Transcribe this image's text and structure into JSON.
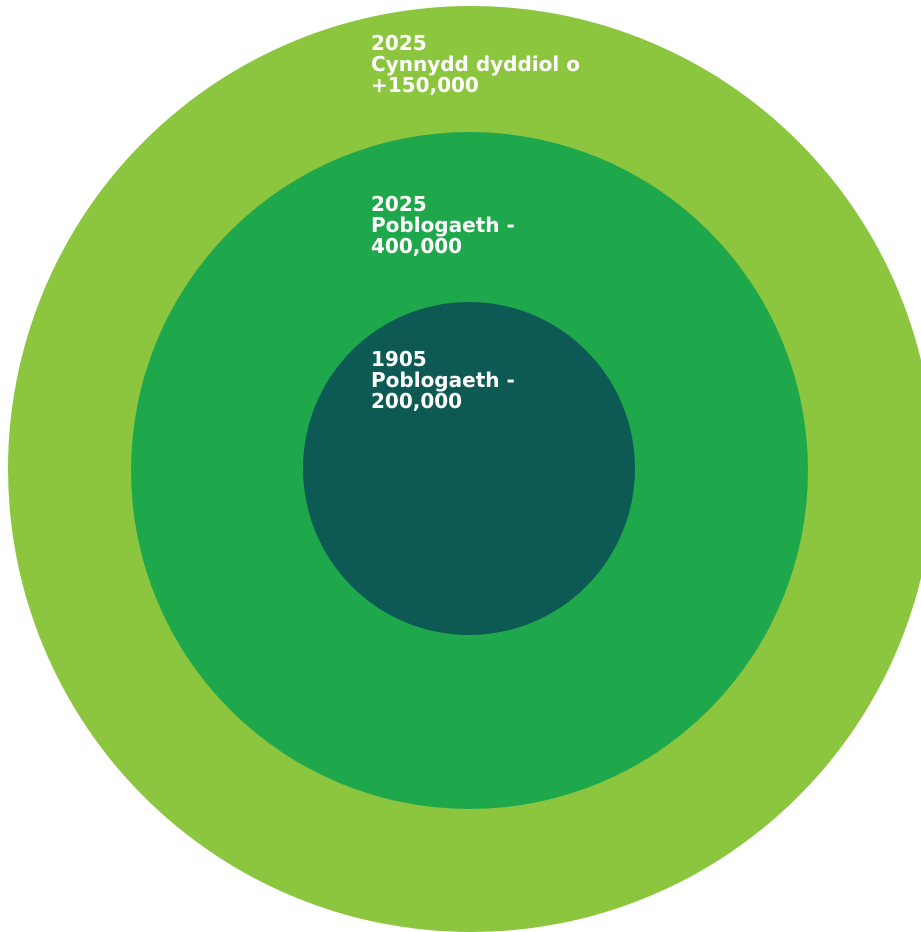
{
  "colors": {
    "outer_ring": "#8cc63f",
    "middle_ring": "#1fa84b",
    "inner_circle": "#0d5a55",
    "label_text": "#ffffff"
  },
  "rings": {
    "outer": {
      "year": "2025",
      "line1": "Cynnydd dyddiol o",
      "line2": "+150,000"
    },
    "middle": {
      "year": "2025",
      "line1": "Poblogaeth -",
      "line2": "400,000"
    },
    "inner": {
      "year": "1905",
      "line1": "Poblogaeth -",
      "line2": "200,000"
    }
  }
}
